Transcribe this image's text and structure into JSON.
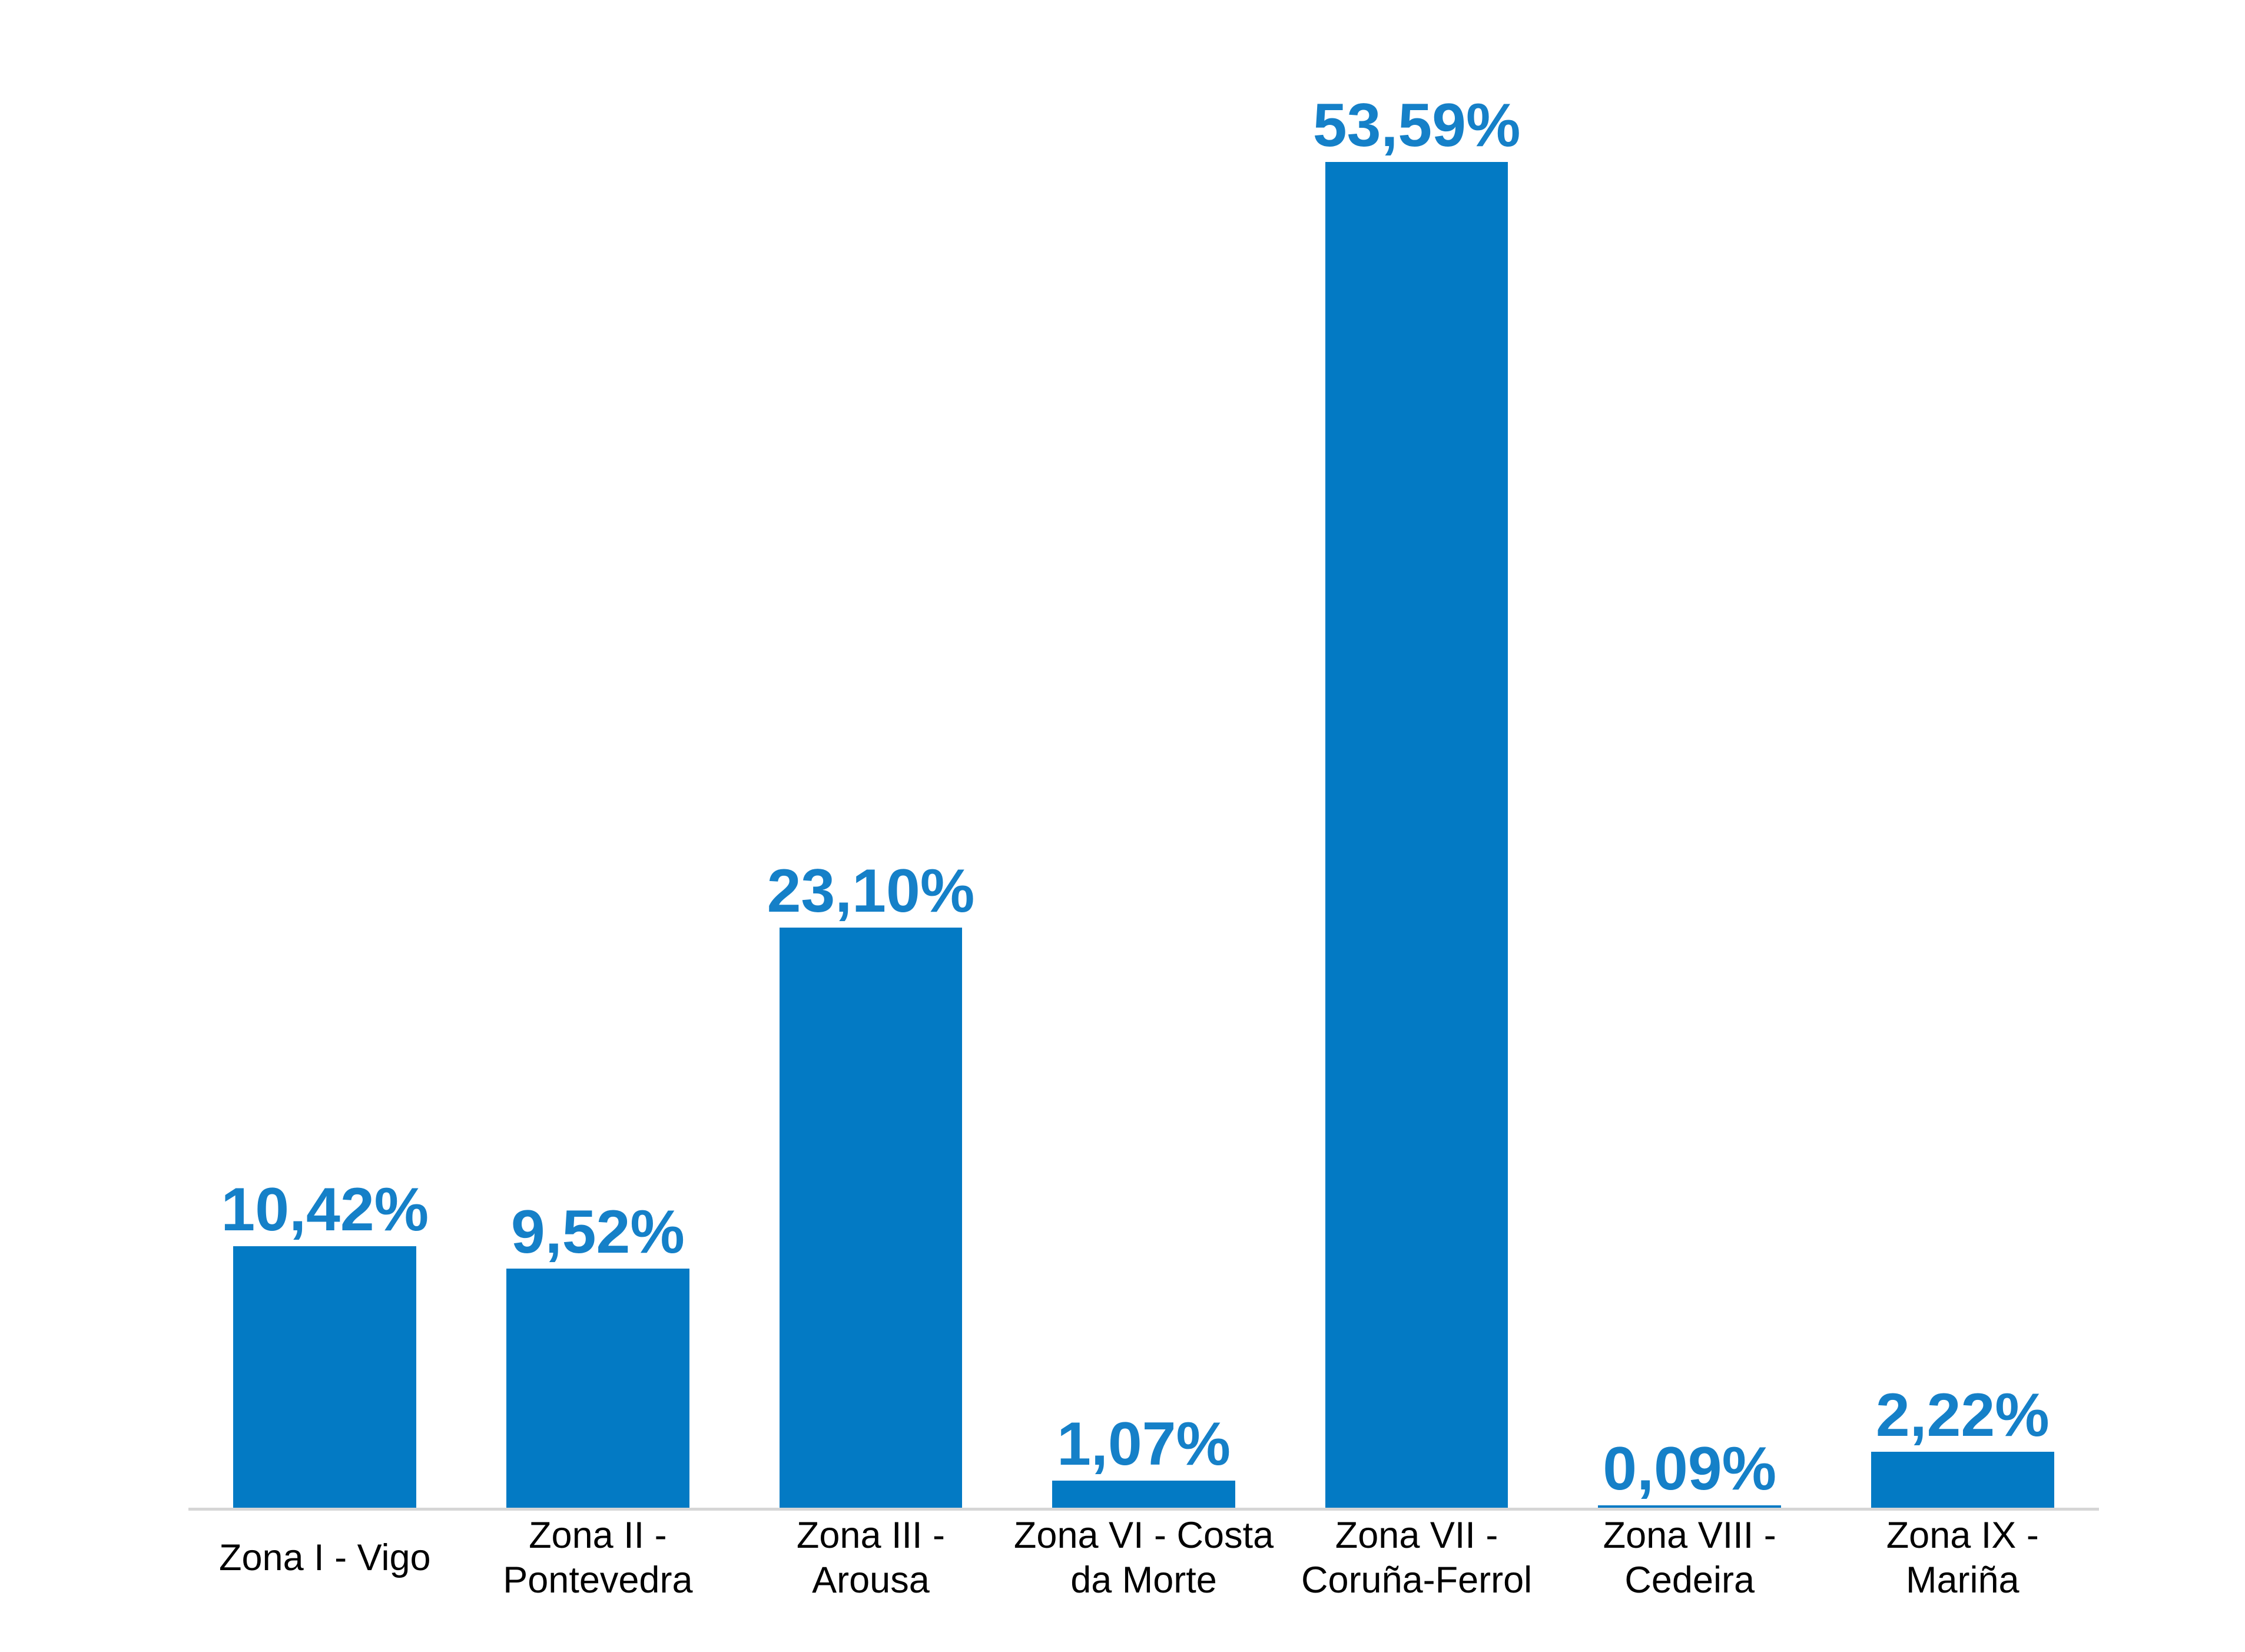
{
  "chart_data": {
    "type": "bar",
    "categories": [
      "Zona I - Vigo",
      "Zona II - Pontevedra",
      "Zona III - Arousa",
      "Zona VI - Costa da Morte",
      "Zona VII - Coruña-Ferrol",
      "Zona VIII - Cedeira",
      "Zona IX - Mariña"
    ],
    "category_label_lines": [
      [
        "Zona I - Vigo"
      ],
      [
        "Zona II -",
        "Pontevedra"
      ],
      [
        "Zona III - Arousa"
      ],
      [
        "Zona VI - Costa",
        "da Morte"
      ],
      [
        "Zona VII -",
        "Coruña-Ferrol"
      ],
      [
        "Zona VIII -",
        "Cedeira"
      ],
      [
        "Zona IX - Mariña"
      ]
    ],
    "values": [
      10.42,
      9.52,
      23.1,
      1.07,
      53.59,
      0.09,
      2.22
    ],
    "value_labels": [
      "10,42%",
      "9,52%",
      "23,10%",
      "1,07%",
      "53,59%",
      "0,09%",
      "2,22%"
    ],
    "title": "",
    "xlabel": "",
    "ylabel": "",
    "ylim": [
      0,
      60
    ],
    "grid": false,
    "legend": false,
    "decimal_separator": ",",
    "bar_width_fraction_of_column": 0.67
  },
  "colors": {
    "bar": "#037AC4",
    "value_label": "#1580C8",
    "category_label": "#000000",
    "axis_line": "#D6D6D6",
    "background": "#FFFFFF"
  }
}
